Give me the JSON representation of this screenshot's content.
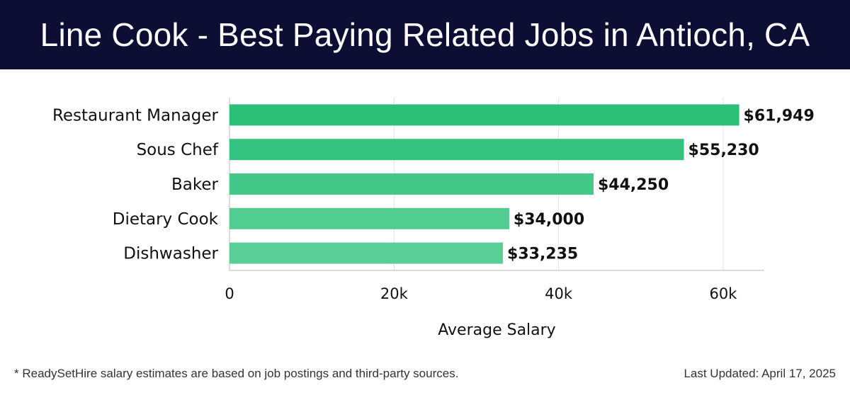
{
  "header": {
    "title": "Line Cook - Best Paying Related Jobs in Antioch, CA"
  },
  "chart_data": {
    "type": "bar",
    "orientation": "horizontal",
    "categories": [
      "Restaurant Manager",
      "Sous Chef",
      "Baker",
      "Dietary Cook",
      "Dishwasher"
    ],
    "values": [
      61949,
      55230,
      44250,
      34000,
      33235
    ],
    "value_labels": [
      "$61,949",
      "$55,230",
      "$44,250",
      "$34,000",
      "$33,235"
    ],
    "bar_colors": [
      "#2bbf78",
      "#33c37f",
      "#43c888",
      "#52cd92",
      "#59cf97"
    ],
    "xlabel": "Average Salary",
    "ylabel": "",
    "xlim": [
      0,
      65000
    ],
    "x_ticks": [
      0,
      20000,
      40000,
      60000
    ],
    "x_tick_labels": [
      "0",
      "20k",
      "40k",
      "60k"
    ],
    "grid": "vertical"
  },
  "footer": {
    "note": "* ReadySetHire salary estimates are based on job postings and third-party sources.",
    "updated": "Last Updated: April 17, 2025"
  }
}
